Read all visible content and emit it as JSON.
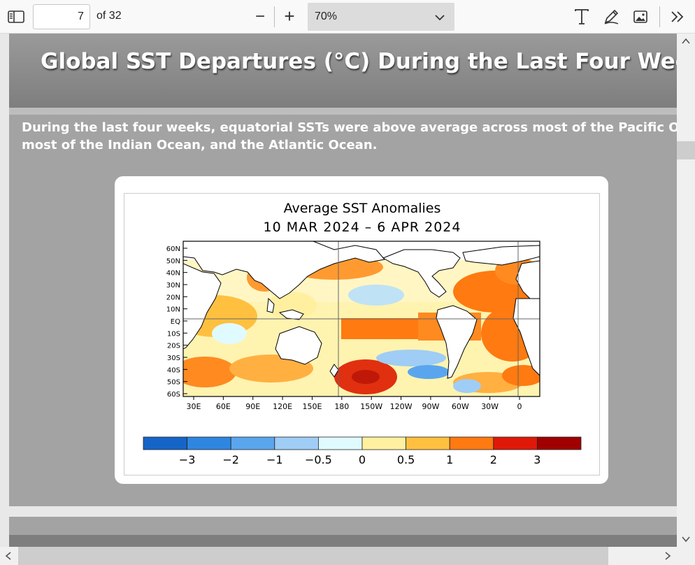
{
  "toolbar": {
    "page_current": "7",
    "page_of": "of 32",
    "zoom_out_symbol": "−",
    "zoom_in_symbol": "+",
    "zoom_value": "70%",
    "icons": [
      "sidebar-icon",
      "text-icon",
      "draw-icon",
      "image-icon",
      "more-icon"
    ]
  },
  "slide": {
    "title": "Global SST Departures (°C) During the Last Four Weeks",
    "body_line1": "During the last four weeks, equatorial SSTs were above average across most of the Pacific Ocean,",
    "body_line2": "most of the Indian Ocean, and the Atlantic Ocean."
  },
  "figure": {
    "title_line1": "Average SST Anomalies",
    "title_line2": "10 MAR 2024 – 6 APR 2024"
  },
  "chart_data": {
    "type": "heatmap",
    "title": "Average SST Anomalies",
    "subtitle": "10 MAR 2024 – 6 APR 2024",
    "x_ticks": [
      "30E",
      "60E",
      "90E",
      "120E",
      "150E",
      "180",
      "150W",
      "120W",
      "90W",
      "60W",
      "30W",
      "0"
    ],
    "y_ticks": [
      "60N",
      "50N",
      "40N",
      "30N",
      "20N",
      "10N",
      "EQ",
      "10S",
      "20S",
      "30S",
      "40S",
      "50S",
      "60S"
    ],
    "colorbar": {
      "labels": [
        "−3",
        "−2",
        "−1",
        "−0.5",
        "0",
        "0.5",
        "1",
        "2",
        "3"
      ],
      "colors": [
        "#1565c8",
        "#2f86e0",
        "#5aa6ee",
        "#9fcdf5",
        "#e0fbff",
        "#fff0a0",
        "#ffc040",
        "#ff7a10",
        "#e01808",
        "#a00000"
      ]
    }
  }
}
